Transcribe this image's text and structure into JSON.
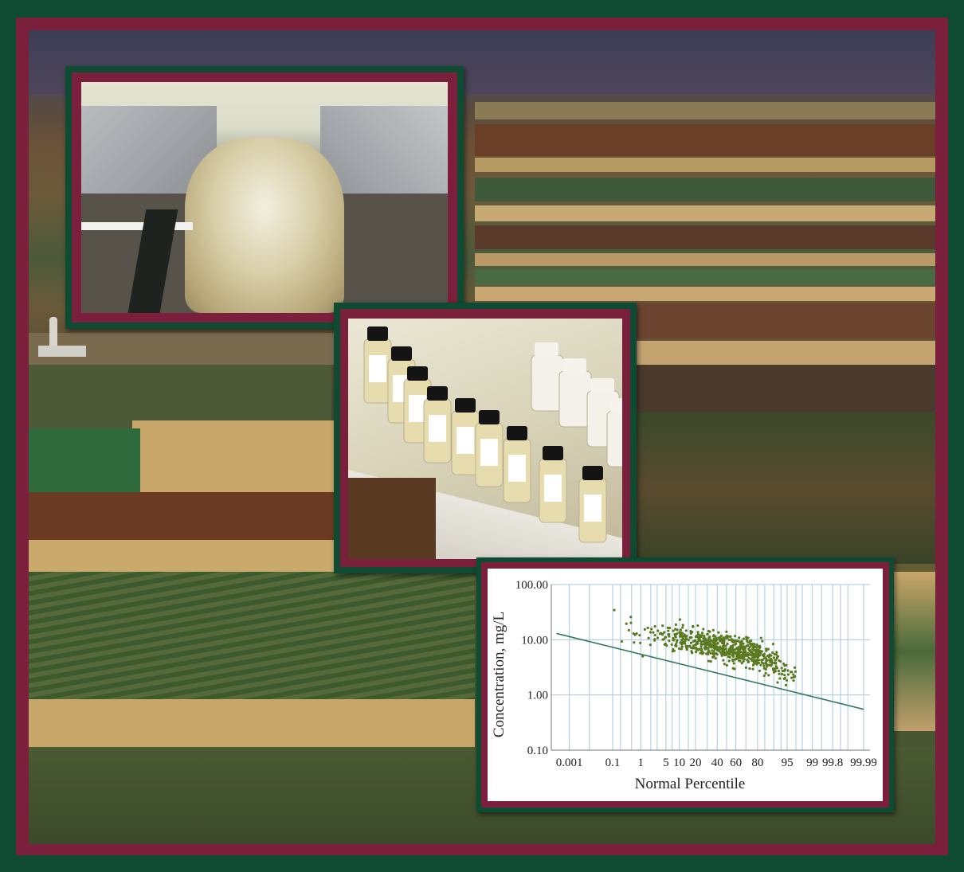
{
  "colors": {
    "frame_green": "#0f4a33",
    "frame_maroon": "#7a1f3c",
    "chart_grid": "#a9c9de",
    "chart_points": "#5a7a1f",
    "chart_line": "#2e7a5a"
  },
  "photos": [
    {
      "subject": "water-flowing-over-flume-weir"
    },
    {
      "subject": "water-sample-bottles"
    },
    {
      "subject": "agricultural-valley-landscape"
    }
  ],
  "chart_data": {
    "type": "scatter",
    "xlabel": "Normal Percentile",
    "ylabel": "Concentration, mg/L",
    "x_scale": "normal-probability",
    "y_scale": "log",
    "x_tick_labels": [
      "0.001",
      "0.1",
      "1",
      "5",
      "10",
      "20",
      "40",
      "60",
      "80",
      "95",
      "99",
      "99.8",
      "99.99"
    ],
    "x_tick_values": [
      0.001,
      0.1,
      1,
      5,
      10,
      20,
      40,
      60,
      80,
      95,
      99,
      99.8,
      99.99
    ],
    "y_tick_labels": [
      "0.10",
      "1.00",
      "10.00",
      "100.00"
    ],
    "y_tick_values": [
      0.1,
      1,
      10,
      100
    ],
    "ylim": [
      0.1,
      100
    ],
    "xlim_percent": [
      0.0001,
      99.995
    ],
    "x_gridlines_percent": [
      0.001,
      0.01,
      0.1,
      0.2,
      0.5,
      1,
      2,
      3,
      5,
      7,
      10,
      15,
      20,
      30,
      40,
      50,
      60,
      70,
      80,
      85,
      90,
      93,
      95,
      97,
      98,
      99,
      99.5,
      99.8,
      99.9,
      99.95,
      99.99
    ],
    "grid": true,
    "trend_line": {
      "x": [
        0.0002,
        99.99
      ],
      "y": [
        13,
        0.55
      ]
    },
    "point_cloud": {
      "count": 700,
      "x_range_percent": [
        0.05,
        97
      ],
      "median_concentration": 7,
      "note_points": "scatter of observed concentrations"
    }
  }
}
